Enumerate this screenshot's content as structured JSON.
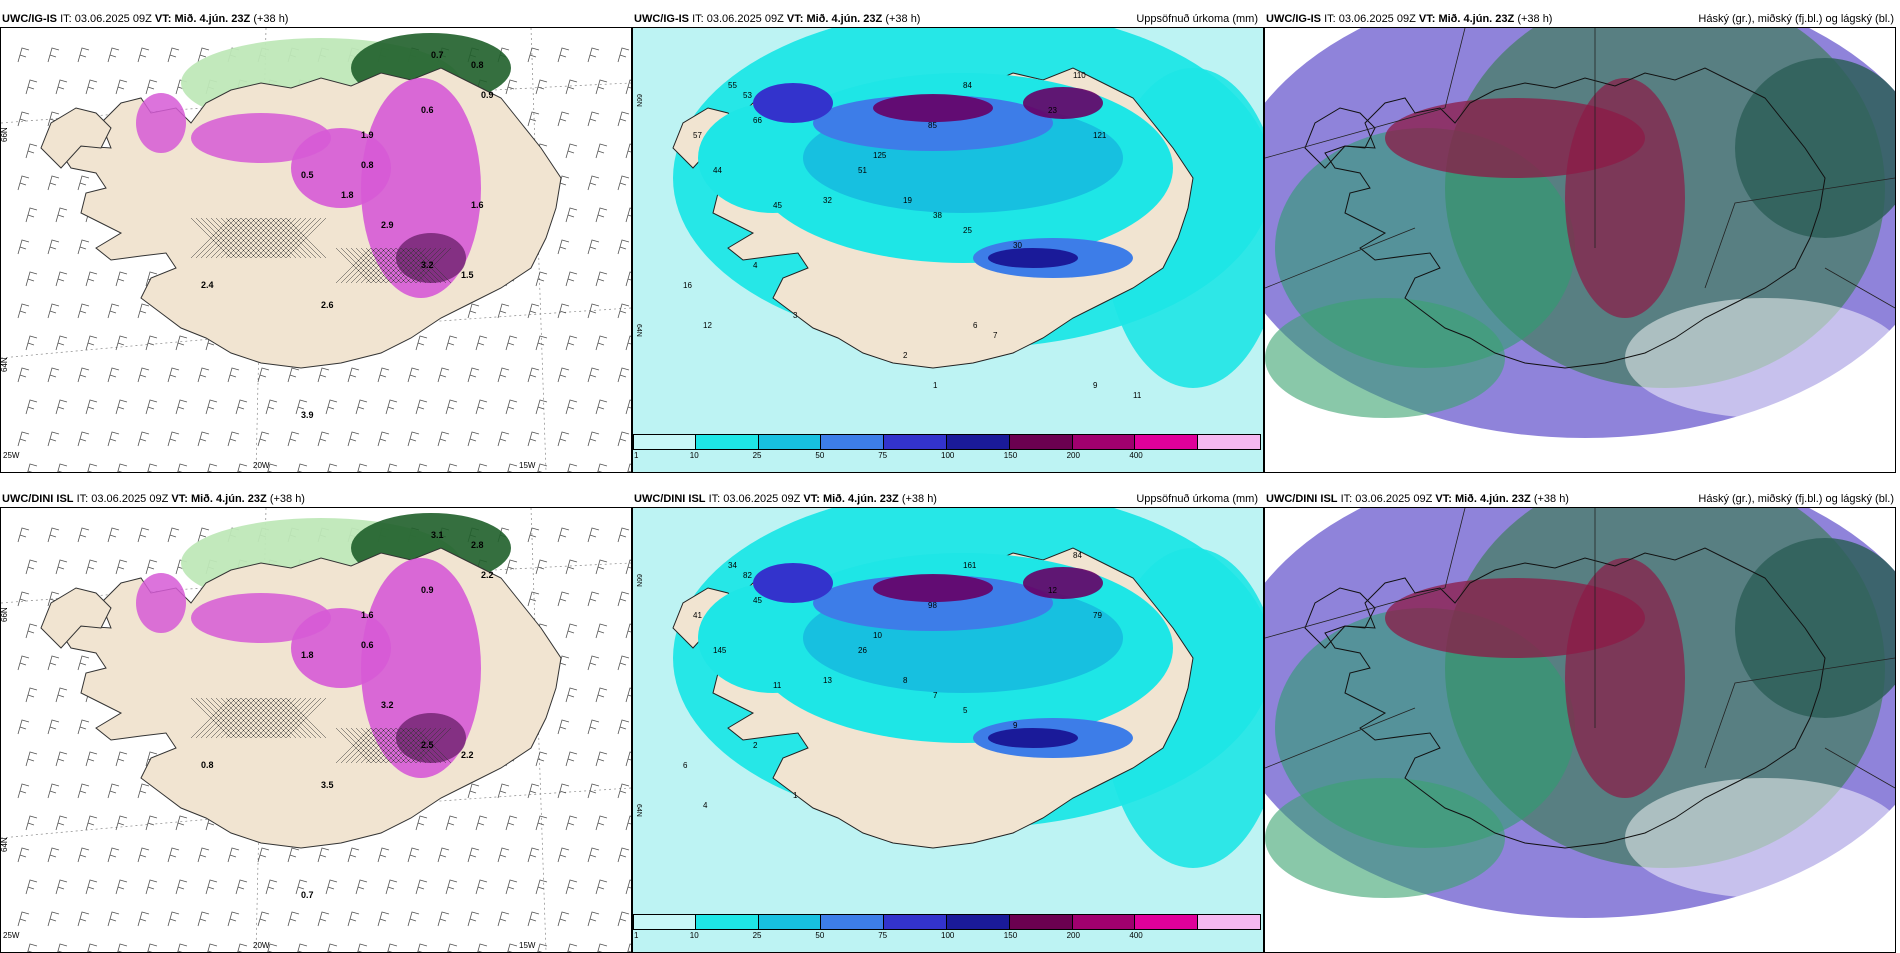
{
  "panels": [
    {
      "model": "UWC/IG-IS",
      "it_label": "IT:",
      "it": "03.06.2025 09Z",
      "vt_label": "VT:",
      "vt": "Mið. 4.jún. 23Z",
      "lead": "(+38 h)",
      "right_title": ""
    },
    {
      "model": "UWC/IG-IS",
      "it_label": "IT:",
      "it": "03.06.2025 09Z",
      "vt_label": "VT:",
      "vt": "Mið. 4.jún. 23Z",
      "lead": "(+38 h)",
      "right_title": "Uppsöfnuð úrkoma (mm)"
    },
    {
      "model": "UWC/IG-IS",
      "it_label": "IT:",
      "it": "03.06.2025 09Z",
      "vt_label": "VT:",
      "vt": "Mið. 4.jún. 23Z",
      "lead": "(+38 h)",
      "right_title": "Háský (gr.), miðský (fj.bl.) og lágský (bl.)"
    },
    {
      "model": "UWC/DINI ISL",
      "it_label": "IT:",
      "it": "03.06.2025 09Z",
      "vt_label": "VT:",
      "vt": "Mið. 4.jún. 23Z",
      "lead": "(+38 h)",
      "right_title": ""
    },
    {
      "model": "UWC/DINI ISL",
      "it_label": "IT:",
      "it": "03.06.2025 09Z",
      "vt_label": "VT:",
      "vt": "Mið. 4.jún. 23Z",
      "lead": "(+38 h)",
      "right_title": "Uppsöfnuð úrkoma (mm)"
    },
    {
      "model": "UWC/DINI ISL",
      "it_label": "IT:",
      "it": "03.06.2025 09Z",
      "vt_label": "VT:",
      "vt": "Mið. 4.jún. 23Z",
      "lead": "(+38 h)",
      "right_title": "Háský (gr.), miðský (fj.bl.) og lágský (bl.)"
    }
  ],
  "axis_labels": {
    "lat_66": "66N",
    "lat_64": "64N",
    "lon_25": "25W",
    "lon_20": "20W",
    "lon_15": "15W"
  },
  "colorbar": {
    "ticks": [
      "1",
      "10",
      "25",
      "50",
      "75",
      "100",
      "150",
      "200",
      "400"
    ],
    "colors": [
      "#c8f7f7",
      "#1ee6e6",
      "#17c0e0",
      "#3d7de8",
      "#3333cc",
      "#1a1a99",
      "#6b0050",
      "#a0006e",
      "#e0009a",
      "#f5b8f0"
    ]
  },
  "colors": {
    "land": "#f1e4d1",
    "precip_light": "#bdf3f3",
    "precip_cyan": "#1ee6e6",
    "precip_blue": "#3d7de8",
    "precip_purple": "#660066",
    "snow_magenta": "#d65ad6",
    "green_dark": "#1f5f2a",
    "green_light": "#bfe8b8",
    "cloud_grey": "#4f7f72",
    "cloud_red": "#8c1a46",
    "cloud_blue": "#6a5acd"
  },
  "map_labels": {
    "ig_wind": [
      "0.7",
      "0.8",
      "0.9",
      "0.6",
      "1.9",
      "2.9",
      "3.2",
      "1.5",
      "2.6",
      "3.9",
      "2.4",
      "0.8",
      "0.5",
      "1.8",
      "1.6"
    ],
    "ig_precip": [
      "55",
      "66",
      "57",
      "53",
      "44",
      "84",
      "110",
      "121",
      "85",
      "23",
      "125",
      "51",
      "32",
      "45",
      "30",
      "38",
      "25",
      "19",
      "16",
      "12",
      "4",
      "3",
      "2",
      "1",
      "6",
      "7",
      "9",
      "11"
    ],
    "dini_wind": [
      "3.1",
      "2.8",
      "2.2",
      "0.9",
      "1.6",
      "3.2",
      "2.5",
      "2.2",
      "3.5",
      "0.7",
      "0.8",
      "0.6",
      "1.8"
    ],
    "dini_precip": [
      "34",
      "45",
      "41",
      "82",
      "145",
      "161",
      "84",
      "79",
      "98",
      "12",
      "10",
      "26",
      "13",
      "11",
      "9",
      "7",
      "5",
      "8",
      "6",
      "4",
      "2",
      "1"
    ]
  }
}
